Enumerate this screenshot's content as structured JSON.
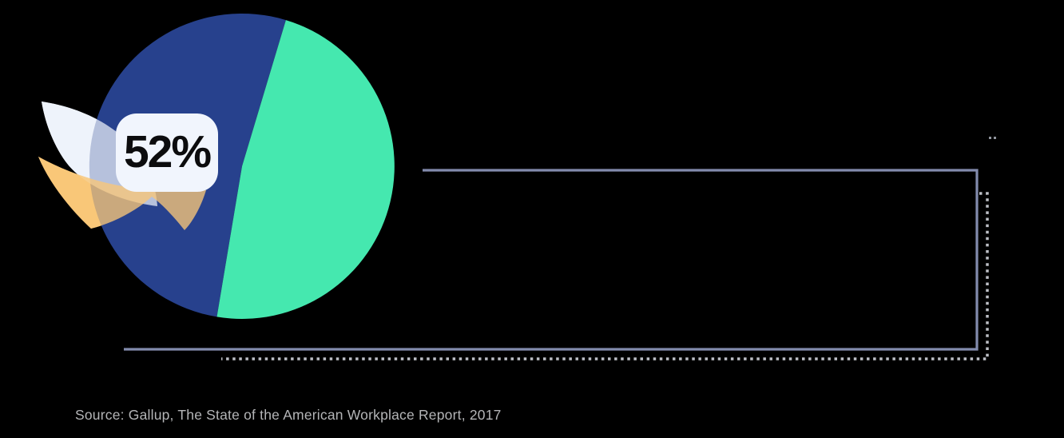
{
  "colors": {
    "background": "#000000",
    "leaf": "#eef2fb",
    "wave": "#f8c778",
    "line_solid": "#828bad",
    "line_dotted": "#bdbfc6",
    "corner_dots": "#90949d",
    "badge_bg": "#f1f5fd",
    "badge_text": "#0c0c0e",
    "source_text": "#b4b5b7"
  },
  "chart_data": {
    "type": "pie",
    "title": "",
    "slices": [
      {
        "label": "52%",
        "value": 52,
        "color": "#27418d"
      },
      {
        "label": "",
        "value": 48,
        "color": "#45e8af"
      }
    ],
    "rotation_deg": 99.5,
    "legend": "none",
    "grid": false,
    "source": "Source: Gallup, The State of the American Workplace Report, 2017"
  }
}
